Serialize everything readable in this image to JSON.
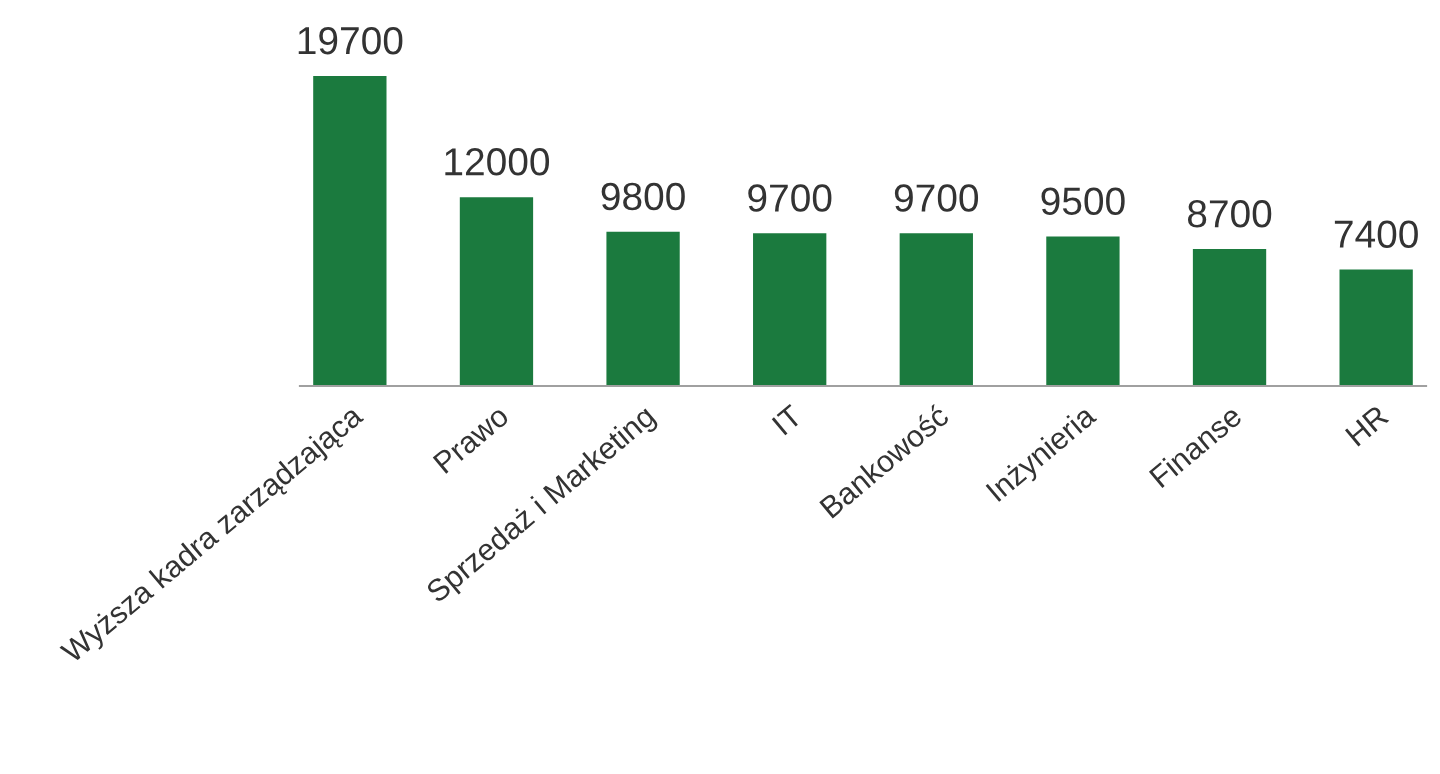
{
  "chart_data": {
    "type": "bar",
    "categories": [
      "Wyższa kadra zarządzająca",
      "Prawo",
      "Sprzedaż i Marketing",
      "IT",
      "Bankowość",
      "Inżynieria",
      "Finanse",
      "HR"
    ],
    "values": [
      19700,
      12000,
      9800,
      9700,
      9700,
      9500,
      8700,
      7400
    ],
    "color": "#1b7a3e",
    "data_labels": true,
    "grid": false,
    "legend": false
  }
}
